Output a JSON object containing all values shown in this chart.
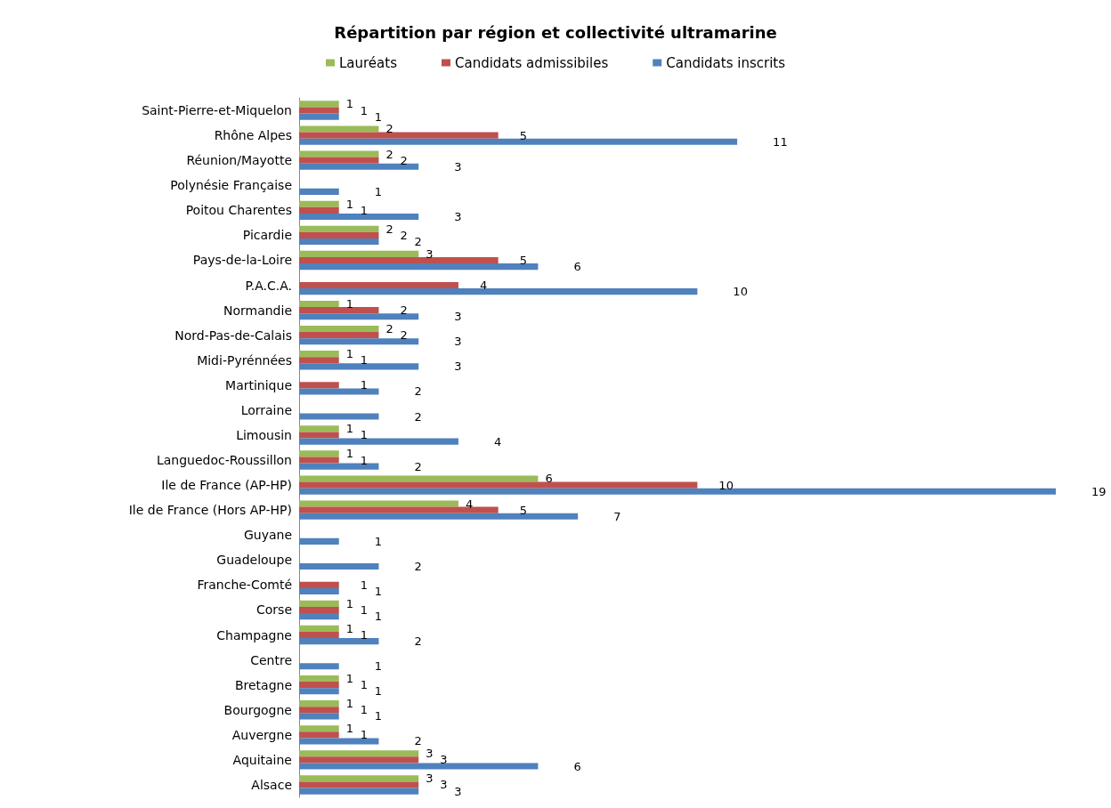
{
  "chart_data": {
    "type": "bar",
    "orientation": "horizontal",
    "title": "Répartition par région et collectivité ultramarine",
    "categories": [
      "Saint-Pierre-et-Miquelon",
      "Rhône Alpes",
      "Réunion/Mayotte",
      "Polynésie Française",
      "Poitou Charentes",
      "Picardie",
      "Pays-de-la-Loire",
      "P.A.C.A.",
      "Normandie",
      "Nord-Pas-de-Calais",
      "Midi-Pyrénnées",
      "Martinique",
      "Lorraine",
      "Limousin",
      "Languedoc-Roussillon",
      "Ile de France (AP-HP)",
      "Ile de France (Hors AP-HP)",
      "Guyane",
      "Guadeloupe",
      "Franche-Comté",
      "Corse",
      "Champagne",
      "Centre",
      "Bretagne",
      "Bourgogne",
      "Auvergne",
      "Aquitaine",
      "Alsace"
    ],
    "series": [
      {
        "name": "Lauréats",
        "color": "#9bbb59",
        "values": [
          1,
          2,
          2,
          null,
          1,
          2,
          3,
          null,
          1,
          2,
          1,
          null,
          null,
          1,
          1,
          6,
          4,
          null,
          null,
          null,
          1,
          1,
          null,
          1,
          1,
          1,
          3,
          3
        ]
      },
      {
        "name": "Candidats admissibiles",
        "color": "#c0504d",
        "values": [
          1,
          5,
          2,
          null,
          1,
          2,
          5,
          4,
          2,
          2,
          1,
          1,
          null,
          1,
          1,
          10,
          5,
          null,
          null,
          1,
          1,
          1,
          null,
          1,
          1,
          1,
          3,
          3
        ]
      },
      {
        "name": "Candidats inscrits",
        "color": "#4f81bd",
        "values": [
          1,
          11,
          3,
          1,
          3,
          2,
          6,
          10,
          3,
          3,
          3,
          2,
          2,
          4,
          2,
          19,
          7,
          1,
          2,
          1,
          1,
          2,
          1,
          1,
          1,
          2,
          6,
          3
        ]
      }
    ],
    "data_labels": true,
    "legend": "top",
    "grid": false
  }
}
